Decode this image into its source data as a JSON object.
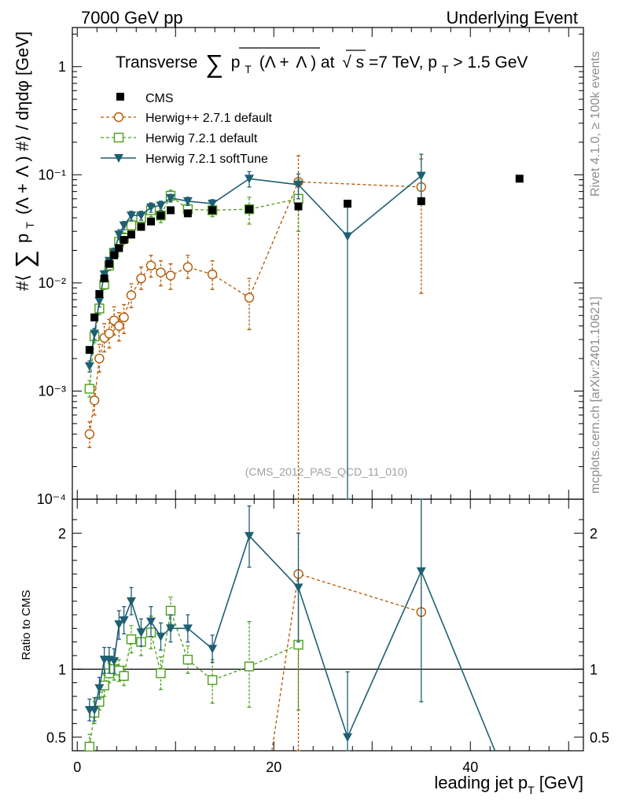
{
  "header": {
    "left_label": "7000 GeV pp",
    "right_label": "Underlying Event",
    "rivet_label": "Rivet 4.1.0, ≥ 100k events",
    "mcplots_label": "mcplots.cern.ch [arXiv:2401.10621]",
    "analysis_id": "(CMS_2012_PAS_QCD_11_010)"
  },
  "colors": {
    "cms": "#000000",
    "herwigpp": "#b35900",
    "herwig721": "#4c9e1a",
    "softtune": "#1e5f73",
    "side_text": "#8c8c8c"
  },
  "chart_data": [
    {
      "id": "main",
      "type": "scatter",
      "title": "Transverse ∑ p_T (Λ + Λ̅) at √s=7 TeV, p_T > 1.5 GeV",
      "title_parts": {
        "a": "Transverse",
        "sum": "∑",
        "p": "p",
        "t": "T",
        "b": "(Λ +",
        "lbar": "Λ",
        "c": ") at",
        "sqrt": "√",
        "s": "s",
        "d": "=7 TeV, p",
        "t2": "T",
        "e": " > 1.5 GeV"
      },
      "ylabel": "#⟨ ∑ p_T (Λ + Λ̅) #⟩ / dηdφ [GeV]",
      "ylabel_parts": {
        "a": "#⟨",
        "sum": "∑",
        "p": "p",
        "t": "T",
        "b": "(Λ +",
        "lbar": "Λ",
        "c": ") #⟩ / dηdφ [GeV]"
      },
      "yscale": "log",
      "ylim": [
        0.0001,
        2.3
      ],
      "xlim": [
        -0.5,
        51.5
      ],
      "y_ticks": [
        {
          "value": 0.0001,
          "label": "10⁻⁴"
        },
        {
          "value": 0.001,
          "label": "10⁻³"
        },
        {
          "value": 0.01,
          "label": "10⁻²"
        },
        {
          "value": 0.1,
          "label": "10⁻¹"
        },
        {
          "value": 1,
          "label": "1"
        }
      ],
      "legend_position": "top-left",
      "legend": [
        {
          "key": "cms",
          "label": "CMS"
        },
        {
          "key": "herwigpp",
          "label": "Herwig++ 2.7.1 default"
        },
        {
          "key": "herwig721",
          "label": "Herwig 7.2.1 default"
        },
        {
          "key": "softtune",
          "label": "Herwig 7.2.1 softTune"
        }
      ],
      "series": [
        {
          "key": "cms",
          "name": "CMS",
          "marker": "filled-square",
          "line": "none",
          "x": [
            1.25,
            1.75,
            2.25,
            2.75,
            3.25,
            3.75,
            4.25,
            4.75,
            5.5,
            6.5,
            7.5,
            8.5,
            9.5,
            11.25,
            13.75,
            17.5,
            22.5,
            27.5,
            35,
            45
          ],
          "y": [
            0.0024,
            0.0048,
            0.0079,
            0.011,
            0.015,
            0.018,
            0.021,
            0.025,
            0.028,
            0.033,
            0.037,
            0.042,
            0.047,
            0.044,
            0.047,
            0.048,
            0.051,
            0.054,
            0.057,
            0.092
          ]
        },
        {
          "key": "herwigpp",
          "name": "Herwig++ 2.7.1 default",
          "marker": "open-circle",
          "line": "dashed",
          "x": [
            1.25,
            1.75,
            2.25,
            2.75,
            3.25,
            3.75,
            4.25,
            4.75,
            5.5,
            6.5,
            7.5,
            8.5,
            9.5,
            11.25,
            13.75,
            17.5,
            22.5,
            35
          ],
          "y": [
            0.0004,
            0.00082,
            0.002,
            0.0031,
            0.0034,
            0.0045,
            0.004,
            0.0048,
            0.0077,
            0.011,
            0.0145,
            0.0125,
            0.0117,
            0.014,
            0.012,
            0.0073,
            0.086,
            0.077
          ],
          "err_lo": [
            0.0003,
            0.0006,
            0.0015,
            0.0023,
            0.0025,
            0.0033,
            0.0029,
            0.0034,
            0.0059,
            0.0087,
            0.0113,
            0.0094,
            0.0087,
            0.011,
            0.0087,
            0.0037,
            5e-05,
            0.008
          ],
          "err_hi": [
            0.00052,
            0.0011,
            0.0027,
            0.0042,
            0.0046,
            0.006,
            0.0053,
            0.0063,
            0.0098,
            0.014,
            0.018,
            0.016,
            0.015,
            0.018,
            0.016,
            0.011,
            0.15,
            0.14
          ]
        },
        {
          "key": "herwig721",
          "name": "Herwig 7.2.1 default",
          "marker": "open-square",
          "line": "dashed",
          "x": [
            1.25,
            1.75,
            2.25,
            2.75,
            3.25,
            3.75,
            4.25,
            4.75,
            5.5,
            6.5,
            7.5,
            8.5,
            9.5,
            11.25,
            13.75,
            17.5,
            22.5
          ],
          "y": [
            0.00105,
            0.0032,
            0.0058,
            0.0097,
            0.0145,
            0.019,
            0.024,
            0.026,
            0.034,
            0.04,
            0.047,
            0.042,
            0.064,
            0.048,
            0.047,
            0.048,
            0.06
          ],
          "err_lo": [
            0.00088,
            0.0028,
            0.0051,
            0.0087,
            0.013,
            0.017,
            0.021,
            0.023,
            0.03,
            0.035,
            0.041,
            0.036,
            0.057,
            0.043,
            0.041,
            0.035,
            0.03
          ],
          "err_hi": [
            0.00125,
            0.0037,
            0.0066,
            0.011,
            0.016,
            0.021,
            0.027,
            0.029,
            0.038,
            0.045,
            0.054,
            0.049,
            0.072,
            0.054,
            0.054,
            0.062,
            0.09
          ]
        },
        {
          "key": "softtune",
          "name": "Herwig 7.2.1 softTune",
          "marker": "filled-triangle-down",
          "line": "solid",
          "x": [
            1.25,
            1.75,
            2.25,
            2.75,
            3.25,
            3.75,
            4.25,
            4.75,
            5.5,
            6.5,
            7.5,
            8.5,
            9.5,
            11.25,
            13.75,
            17.5,
            22.5,
            27.5,
            35
          ],
          "y": [
            0.0017,
            0.0034,
            0.0068,
            0.012,
            0.016,
            0.019,
            0.028,
            0.034,
            0.042,
            0.042,
            0.05,
            0.052,
            0.061,
            0.057,
            0.054,
            0.092,
            0.081,
            0.027,
            0.098
          ],
          "err_lo": [
            0.0015,
            0.003,
            0.006,
            0.011,
            0.015,
            0.017,
            0.025,
            0.031,
            0.038,
            0.038,
            0.045,
            0.047,
            0.056,
            0.052,
            0.049,
            0.077,
            0.06,
            5e-05,
            0.06
          ],
          "err_hi": [
            0.0019,
            0.0038,
            0.0076,
            0.013,
            0.017,
            0.021,
            0.031,
            0.037,
            0.046,
            0.046,
            0.055,
            0.057,
            0.066,
            0.062,
            0.059,
            0.107,
            0.102,
            0.054,
            0.155
          ]
        }
      ]
    },
    {
      "id": "ratio",
      "type": "scatter",
      "ylabel": "Ratio to CMS",
      "xlabel": "leading jet p_T [GeV]",
      "xlabel_parts": {
        "a": "leading jet p",
        "t": "T",
        "b": " [GeV]"
      },
      "ylim": [
        0.4,
        2.25
      ],
      "xlim": [
        -0.5,
        51.5
      ],
      "reference_line": 1,
      "y_ticks": [
        {
          "value": 0.5,
          "label": "0.5"
        },
        {
          "value": 1,
          "label": "1"
        },
        {
          "value": 2,
          "label": "2"
        }
      ],
      "x_ticks": [
        {
          "value": 0,
          "label": "0"
        },
        {
          "value": 20,
          "label": "20"
        },
        {
          "value": 40,
          "label": "40"
        }
      ],
      "series": [
        {
          "key": "herwigpp",
          "name": "Herwig++ 2.7.1 default",
          "marker": "open-circle",
          "line": "dashed",
          "x": [
            19.8,
            22.5,
            35
          ],
          "y": [
            0.4,
            1.7,
            1.42
          ],
          "err_lo": [
            0.4,
            0.0,
            1.42
          ],
          "err_hi": [
            0.4,
            2.25,
            2.25
          ],
          "hidden_markers": [
            0
          ]
        },
        {
          "key": "herwig721",
          "name": "Herwig 7.2.1 default",
          "marker": "open-square",
          "line": "dashed",
          "x": [
            1.25,
            1.75,
            2.25,
            2.75,
            3.25,
            3.75,
            4.25,
            4.75,
            5.5,
            6.5,
            7.5,
            8.5,
            9.5,
            11.25,
            13.75,
            17.5,
            22.5
          ],
          "y": [
            0.43,
            0.68,
            0.76,
            0.88,
            0.97,
            1.0,
            0.99,
            0.95,
            1.22,
            1.2,
            1.27,
            0.97,
            1.43,
            1.07,
            0.92,
            1.02,
            1.18
          ],
          "err_lo": [
            0.35,
            0.6,
            0.7,
            0.8,
            0.9,
            0.92,
            0.91,
            0.88,
            1.12,
            1.1,
            1.15,
            0.85,
            1.33,
            0.97,
            0.75,
            0.72,
            0.7
          ],
          "err_hi": [
            0.52,
            0.76,
            0.83,
            0.96,
            1.04,
            1.08,
            1.07,
            1.02,
            1.32,
            1.3,
            1.39,
            1.09,
            1.53,
            1.17,
            1.07,
            1.35,
            1.6
          ]
        },
        {
          "key": "softtune",
          "name": "Herwig 7.2.1 softTune",
          "marker": "filled-triangle-down",
          "line": "solid",
          "x": [
            1.25,
            1.75,
            2.25,
            2.75,
            3.25,
            3.75,
            4.25,
            4.75,
            5.5,
            6.5,
            7.5,
            8.5,
            9.5,
            11.25,
            13.75,
            17.5,
            22.5,
            27.5,
            35,
            42.5
          ],
          "y": [
            0.7,
            0.7,
            0.86,
            1.07,
            1.07,
            1.06,
            1.33,
            1.36,
            1.5,
            1.27,
            1.35,
            1.24,
            1.3,
            1.3,
            1.15,
            1.98,
            1.6,
            0.5,
            1.72,
            0.4
          ],
          "err_lo": [
            0.62,
            0.62,
            0.78,
            0.97,
            0.97,
            0.97,
            1.22,
            1.26,
            1.4,
            1.17,
            1.24,
            1.14,
            1.2,
            1.2,
            1.05,
            1.75,
            1.2,
            0.4,
            0.76,
            0.4
          ],
          "err_hi": [
            0.78,
            0.79,
            0.94,
            1.16,
            1.16,
            1.15,
            1.43,
            1.46,
            1.6,
            1.37,
            1.46,
            1.34,
            1.4,
            1.4,
            1.25,
            2.2,
            2.0,
            0.98,
            2.25,
            0.4
          ],
          "hidden_markers": [
            19
          ]
        }
      ]
    }
  ]
}
